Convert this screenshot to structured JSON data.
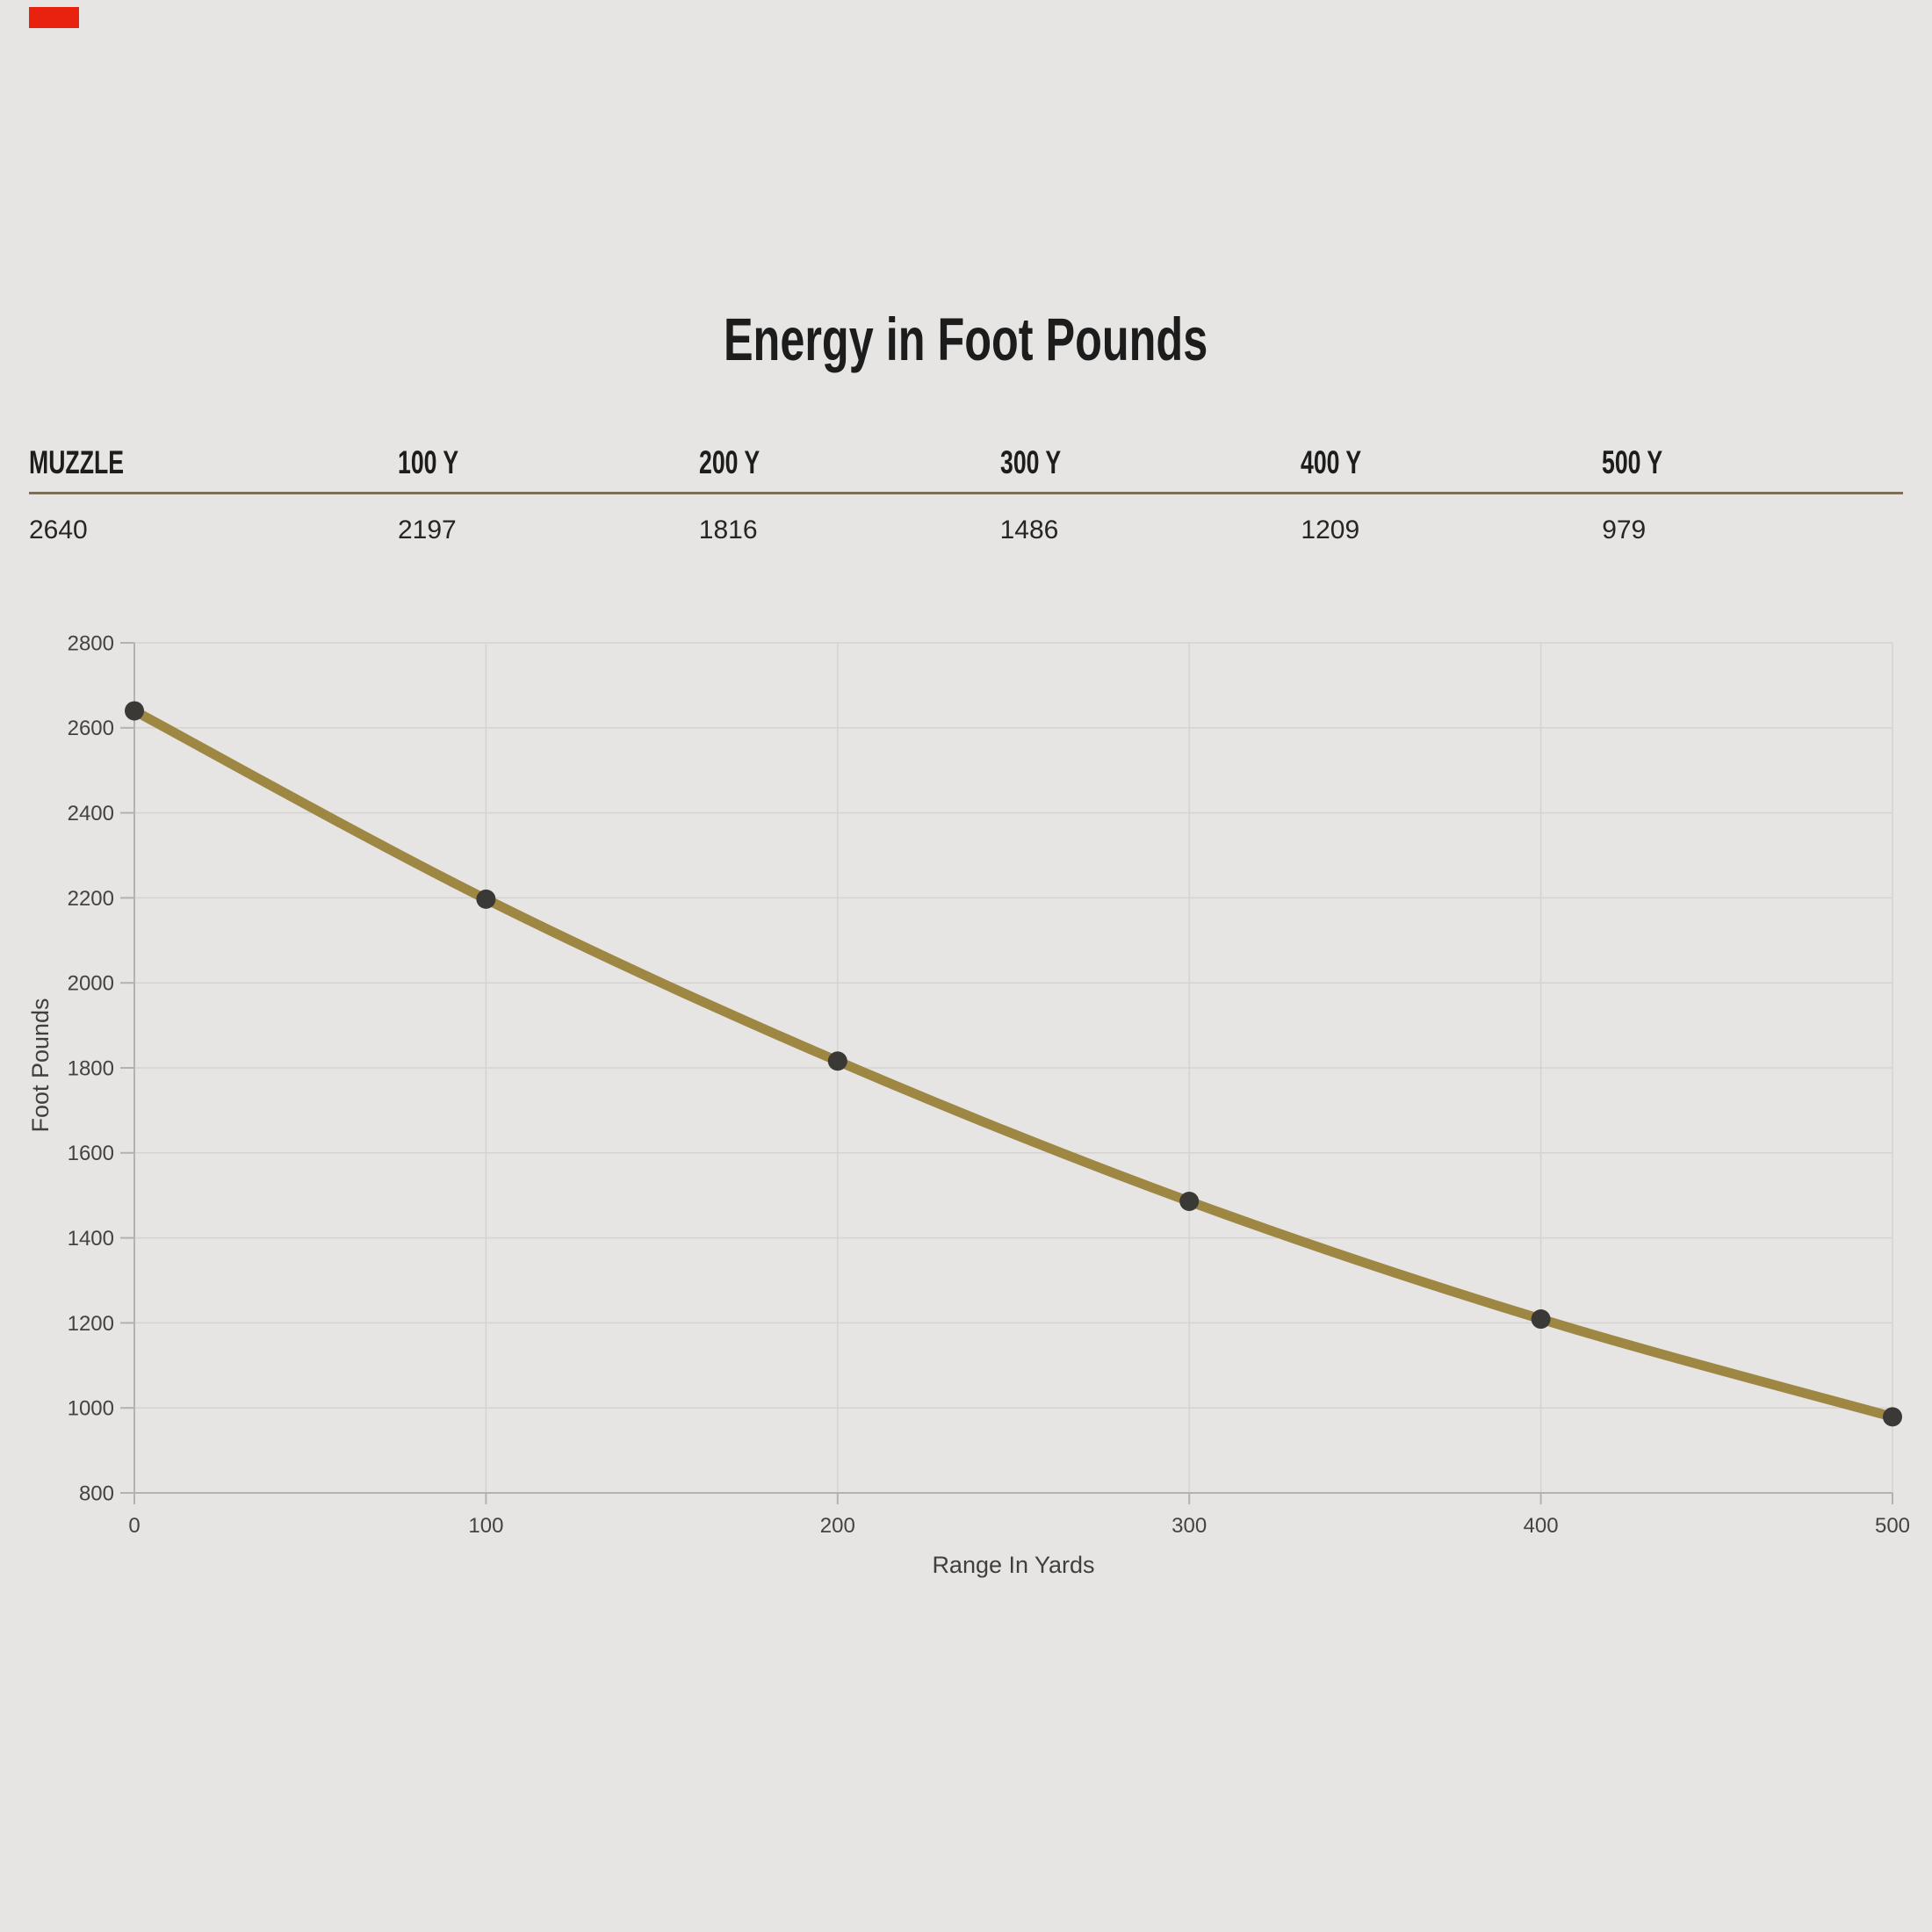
{
  "page": {
    "background": "#e6e5e3",
    "marker_color": "#e8220f"
  },
  "title": "Energy in Foot Pounds",
  "table": {
    "headers": [
      "MUZZLE",
      "100 Y",
      "200 Y",
      "300 Y",
      "400 Y",
      "500 Y"
    ],
    "values": [
      "2640",
      "2197",
      "1816",
      "1486",
      "1209",
      "979"
    ],
    "divider_color": "#7b7057"
  },
  "chart_data": {
    "type": "line",
    "title": "Energy in Foot Pounds",
    "x": [
      0,
      100,
      200,
      300,
      400,
      500
    ],
    "series": [
      {
        "name": "Energy in Foot Pounds",
        "values": [
          2640,
          2197,
          1816,
          1486,
          1209,
          979
        ]
      }
    ],
    "xlabel": "Range In Yards",
    "ylabel": "Foot Pounds",
    "xlim": [
      0,
      500
    ],
    "ylim": [
      800,
      2800
    ],
    "x_ticks": [
      0,
      100,
      200,
      300,
      400,
      500
    ],
    "y_ticks": [
      800,
      1000,
      1200,
      1400,
      1600,
      1800,
      2000,
      2200,
      2400,
      2600,
      2800
    ],
    "grid": true,
    "legend": "none",
    "line_color": "#9e8643",
    "point_color": "#3b3936",
    "grid_color": "#d4d3d1",
    "axis_color": "#b3b2b0"
  }
}
